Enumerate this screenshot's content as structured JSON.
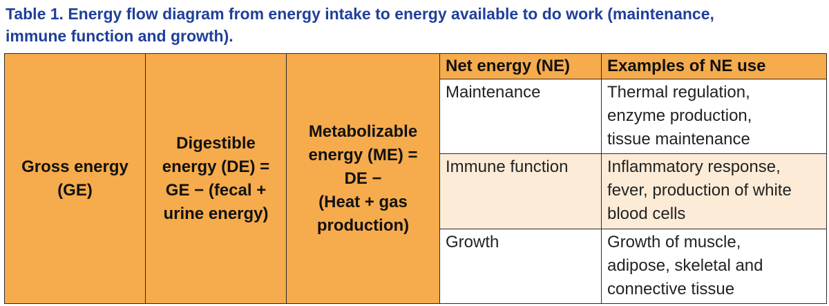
{
  "caption": {
    "line1": "Table 1.  Energy flow diagram from energy intake to energy available to do work (maintenance,",
    "line2": "immune function and growth)."
  },
  "col_ge": {
    "line1": "Gross energy",
    "line2": "(GE)"
  },
  "col_de": {
    "line1": "Digestible",
    "line2": "energy (DE) =",
    "line3": "GE − (fecal +",
    "line4": "urine energy)"
  },
  "col_me": {
    "line1": "Metabolizable",
    "line2": "energy (ME) =",
    "line3": "DE −",
    "line4": "(Heat + gas",
    "line5": "production)"
  },
  "headers": {
    "ne": "Net energy (NE)",
    "examples": "Examples of NE use"
  },
  "rows": [
    {
      "name": "Maintenance",
      "lines": [
        "Thermal regulation,",
        "enzyme production,",
        "tissue maintenance"
      ]
    },
    {
      "name": "Immune function",
      "lines": [
        "Inflammatory response,",
        "fever, production of white",
        "blood cells"
      ]
    },
    {
      "name": "Growth",
      "lines": [
        "Growth of muscle,",
        "adipose, skeletal and",
        "connective tissue"
      ]
    }
  ],
  "colors": {
    "caption": "#1f3f9a",
    "orange": "#f6ab4c",
    "pale_orange": "#fcebd6"
  }
}
